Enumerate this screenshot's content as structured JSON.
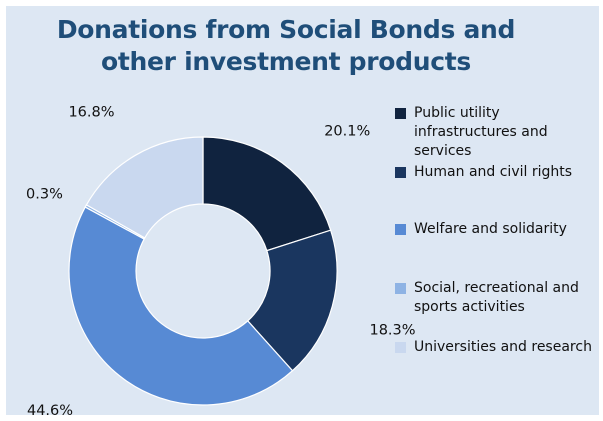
{
  "chart_data": {
    "type": "pie",
    "title": "Donations from Social Bonds and other investment products",
    "title_lines": [
      "Donations from Social Bonds and",
      "other investment products"
    ],
    "donut": true,
    "categories": [
      "Public utility infrastructures and services",
      "Human and civil rights",
      "Welfare and solidarity",
      "Social, recreational and sports activities",
      "Universities and research"
    ],
    "values": [
      20.1,
      18.3,
      44.6,
      0.3,
      16.8
    ],
    "value_labels": [
      "20.1%",
      "18.3%",
      "44.6%",
      "0.3%",
      "16.8%"
    ],
    "colors": [
      "#10233f",
      "#1a365f",
      "#578ad4",
      "#8eb3e4",
      "#c9d8ef"
    ],
    "legend_position": "right"
  }
}
